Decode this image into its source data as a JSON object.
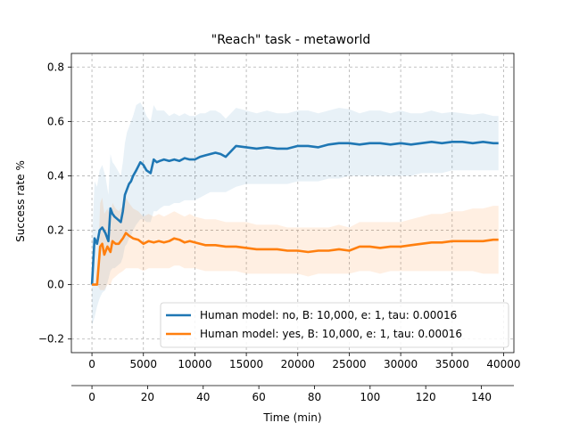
{
  "chart_data": {
    "type": "line",
    "title": "\"Reach\" task - metaworld",
    "ylabel": "Success rate %",
    "xlabel": "",
    "secondary_xlabel": "Time (min)",
    "xlim": [
      -2000,
      41000
    ],
    "ylim": [
      -0.25,
      0.85
    ],
    "secondary_xlim": [
      -7.4,
      151.7
    ],
    "xticks": [
      0,
      5000,
      10000,
      15000,
      20000,
      25000,
      30000,
      35000,
      40000
    ],
    "xtick_labels": [
      "0",
      "5000",
      "10000",
      "15000",
      "20000",
      "25000",
      "30000",
      "35000",
      "40000"
    ],
    "yticks": [
      -0.2,
      0.0,
      0.2,
      0.4,
      0.6,
      0.8
    ],
    "ytick_labels": [
      "−0.2",
      "0.0",
      "0.2",
      "0.4",
      "0.6",
      "0.8"
    ],
    "secondary_xticks": [
      0,
      20,
      40,
      60,
      80,
      100,
      120,
      140
    ],
    "secondary_xtick_labels": [
      "0",
      "20",
      "40",
      "60",
      "80",
      "100",
      "120",
      "140"
    ],
    "grid": true,
    "grid_style": "dashed",
    "legend_position": "lower-right",
    "series": [
      {
        "name": "Human model: no, B: 10,000, e: 1, tau: 0.00016",
        "color": "#1f77b4",
        "band_alpha": 0.1,
        "x": [
          0,
          250,
          500,
          750,
          1000,
          1300,
          1600,
          1800,
          2000,
          2200,
          2500,
          2800,
          3000,
          3200,
          3400,
          3600,
          3800,
          4000,
          4300,
          4700,
          5000,
          5300,
          5700,
          6000,
          6300,
          6600,
          7000,
          7500,
          8000,
          8500,
          9000,
          9500,
          10000,
          10500,
          11000,
          11500,
          12000,
          12500,
          13000,
          13500,
          14000,
          15000,
          16000,
          17000,
          18000,
          19000,
          20000,
          21000,
          22000,
          23000,
          24000,
          25000,
          26000,
          27000,
          28000,
          29000,
          30000,
          31000,
          32000,
          33000,
          34000,
          35000,
          36000,
          37000,
          38000,
          39000,
          39500
        ],
        "y": [
          0.0,
          0.17,
          0.15,
          0.2,
          0.21,
          0.19,
          0.16,
          0.28,
          0.26,
          0.25,
          0.24,
          0.23,
          0.27,
          0.33,
          0.35,
          0.37,
          0.38,
          0.4,
          0.42,
          0.45,
          0.44,
          0.42,
          0.41,
          0.46,
          0.45,
          0.455,
          0.46,
          0.455,
          0.46,
          0.455,
          0.465,
          0.46,
          0.46,
          0.47,
          0.475,
          0.48,
          0.485,
          0.48,
          0.47,
          0.49,
          0.51,
          0.505,
          0.5,
          0.505,
          0.5,
          0.5,
          0.51,
          0.51,
          0.505,
          0.515,
          0.52,
          0.52,
          0.515,
          0.52,
          0.52,
          0.515,
          0.52,
          0.515,
          0.52,
          0.525,
          0.52,
          0.525,
          0.525,
          0.52,
          0.525,
          0.52,
          0.52
        ],
        "lower": [
          -0.15,
          -0.12,
          -0.08,
          -0.05,
          -0.03,
          -0.02,
          0.02,
          0.05,
          0.06,
          0.06,
          0.07,
          0.08,
          0.1,
          0.14,
          0.15,
          0.17,
          0.18,
          0.2,
          0.22,
          0.24,
          0.24,
          0.23,
          0.23,
          0.27,
          0.27,
          0.28,
          0.29,
          0.29,
          0.3,
          0.3,
          0.31,
          0.31,
          0.31,
          0.32,
          0.33,
          0.34,
          0.34,
          0.34,
          0.34,
          0.35,
          0.36,
          0.37,
          0.37,
          0.37,
          0.37,
          0.37,
          0.38,
          0.38,
          0.38,
          0.39,
          0.39,
          0.4,
          0.4,
          0.4,
          0.4,
          0.4,
          0.4,
          0.4,
          0.41,
          0.41,
          0.41,
          0.42,
          0.42,
          0.42,
          0.42,
          0.42,
          0.42
        ],
        "upper": [
          0.15,
          0.38,
          0.36,
          0.42,
          0.44,
          0.4,
          0.33,
          0.48,
          0.45,
          0.44,
          0.42,
          0.4,
          0.45,
          0.52,
          0.56,
          0.58,
          0.6,
          0.62,
          0.66,
          0.67,
          0.65,
          0.62,
          0.6,
          0.66,
          0.64,
          0.64,
          0.64,
          0.62,
          0.63,
          0.62,
          0.63,
          0.62,
          0.62,
          0.63,
          0.63,
          0.64,
          0.64,
          0.63,
          0.61,
          0.63,
          0.65,
          0.64,
          0.63,
          0.64,
          0.63,
          0.63,
          0.64,
          0.64,
          0.63,
          0.64,
          0.65,
          0.645,
          0.63,
          0.64,
          0.64,
          0.63,
          0.64,
          0.63,
          0.63,
          0.64,
          0.63,
          0.635,
          0.63,
          0.625,
          0.63,
          0.62,
          0.62
        ]
      },
      {
        "name": "Human model: yes, B: 10,000, e: 1, tau: 0.00016",
        "color": "#ff7f0e",
        "band_alpha": 0.12,
        "x": [
          0,
          250,
          500,
          800,
          1000,
          1200,
          1500,
          1800,
          2000,
          2300,
          2600,
          3000,
          3300,
          3600,
          4000,
          4500,
          5000,
          5500,
          6000,
          6500,
          7000,
          7500,
          8000,
          8500,
          9000,
          9500,
          10000,
          11000,
          12000,
          13000,
          14000,
          15000,
          16000,
          17000,
          18000,
          19000,
          20000,
          21000,
          22000,
          23000,
          24000,
          25000,
          26000,
          27000,
          28000,
          29000,
          30000,
          31000,
          32000,
          33000,
          34000,
          35000,
          36000,
          37000,
          38000,
          39000,
          39500
        ],
        "y": [
          0.0,
          0.0,
          0.0,
          0.14,
          0.15,
          0.11,
          0.14,
          0.12,
          0.16,
          0.15,
          0.15,
          0.17,
          0.19,
          0.18,
          0.17,
          0.165,
          0.15,
          0.16,
          0.155,
          0.16,
          0.155,
          0.16,
          0.17,
          0.165,
          0.155,
          0.16,
          0.155,
          0.145,
          0.145,
          0.14,
          0.14,
          0.135,
          0.13,
          0.13,
          0.13,
          0.125,
          0.125,
          0.12,
          0.125,
          0.125,
          0.13,
          0.125,
          0.14,
          0.14,
          0.135,
          0.14,
          0.14,
          0.145,
          0.15,
          0.155,
          0.155,
          0.16,
          0.16,
          0.16,
          0.16,
          0.165,
          0.165
        ],
        "lower": [
          0.0,
          0.0,
          0.0,
          -0.02,
          -0.02,
          -0.02,
          0.0,
          0.0,
          0.02,
          0.03,
          0.04,
          0.05,
          0.06,
          0.06,
          0.06,
          0.06,
          0.05,
          0.06,
          0.06,
          0.06,
          0.06,
          0.06,
          0.07,
          0.07,
          0.06,
          0.06,
          0.06,
          0.05,
          0.05,
          0.05,
          0.05,
          0.04,
          0.04,
          0.04,
          0.04,
          0.04,
          0.04,
          0.03,
          0.04,
          0.04,
          0.04,
          0.04,
          0.05,
          0.05,
          0.04,
          0.05,
          0.05,
          0.05,
          0.05,
          0.05,
          0.05,
          0.05,
          0.05,
          0.05,
          0.04,
          0.04,
          0.04
        ],
        "upper": [
          0.0,
          0.0,
          0.0,
          0.3,
          0.32,
          0.26,
          0.28,
          0.25,
          0.3,
          0.28,
          0.27,
          0.29,
          0.32,
          0.3,
          0.28,
          0.27,
          0.25,
          0.26,
          0.25,
          0.26,
          0.25,
          0.26,
          0.27,
          0.26,
          0.25,
          0.26,
          0.25,
          0.24,
          0.24,
          0.23,
          0.23,
          0.23,
          0.22,
          0.22,
          0.22,
          0.21,
          0.21,
          0.21,
          0.21,
          0.21,
          0.22,
          0.21,
          0.23,
          0.23,
          0.23,
          0.23,
          0.23,
          0.24,
          0.25,
          0.26,
          0.26,
          0.27,
          0.27,
          0.28,
          0.28,
          0.29,
          0.29
        ]
      }
    ]
  }
}
